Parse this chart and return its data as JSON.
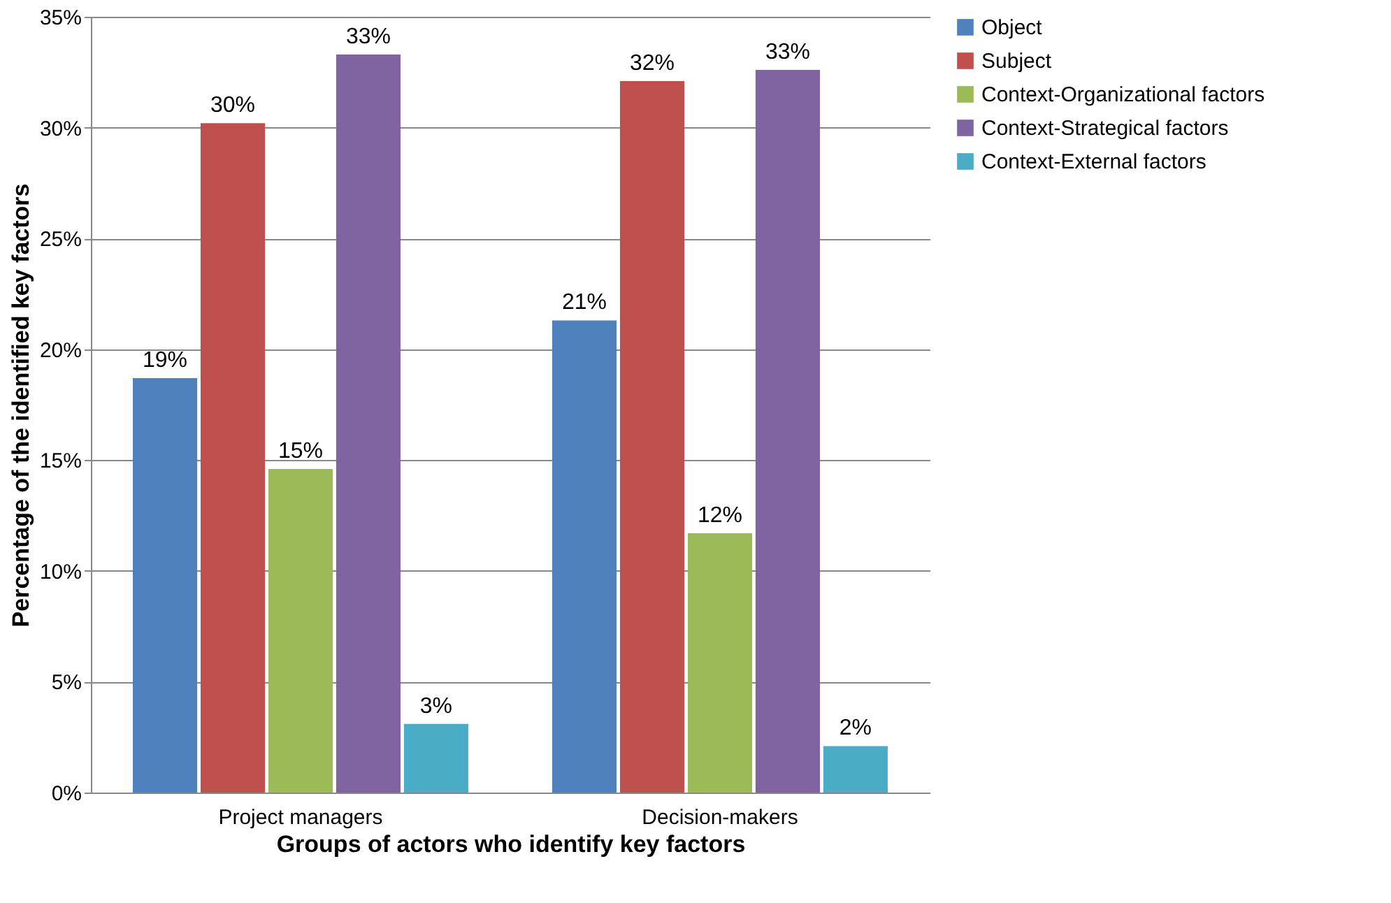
{
  "chart_data": {
    "type": "bar",
    "categories": [
      "Project managers",
      "Decision-makers"
    ],
    "xlabel": "Groups of actors who identify key factors",
    "ylabel": "Percentage of the  identified key factors",
    "ylim": [
      0,
      35
    ],
    "yticks": [
      {
        "value": 0,
        "label": "0%"
      },
      {
        "value": 5,
        "label": "5%"
      },
      {
        "value": 10,
        "label": "10%"
      },
      {
        "value": 15,
        "label": "15%"
      },
      {
        "value": 20,
        "label": "20%"
      },
      {
        "value": 25,
        "label": "25%"
      },
      {
        "value": 30,
        "label": "30%"
      },
      {
        "value": 35,
        "label": "35%"
      }
    ],
    "grid": "y",
    "legend": "right",
    "series": [
      {
        "name": "Object",
        "color": "#4f81bd",
        "values": [
          18.7,
          21.3
        ],
        "value_labels": [
          "19%",
          "21%"
        ]
      },
      {
        "name": "Subject",
        "color": "#c0504d",
        "values": [
          30.2,
          32.1
        ],
        "value_labels": [
          "30%",
          "32%"
        ]
      },
      {
        "name": "Context-Organizational factors",
        "color": "#9bbb59",
        "values": [
          14.6,
          11.7
        ],
        "value_labels": [
          "15%",
          "12%"
        ]
      },
      {
        "name": "Context-Strategical factors",
        "color": "#8064a2",
        "values": [
          33.3,
          32.6
        ],
        "value_labels": [
          "33%",
          "33%"
        ]
      },
      {
        "name": "Context-External factors",
        "color": "#4bacc6",
        "values": [
          3.1,
          2.1
        ],
        "value_labels": [
          "3%",
          "2%"
        ]
      }
    ]
  }
}
